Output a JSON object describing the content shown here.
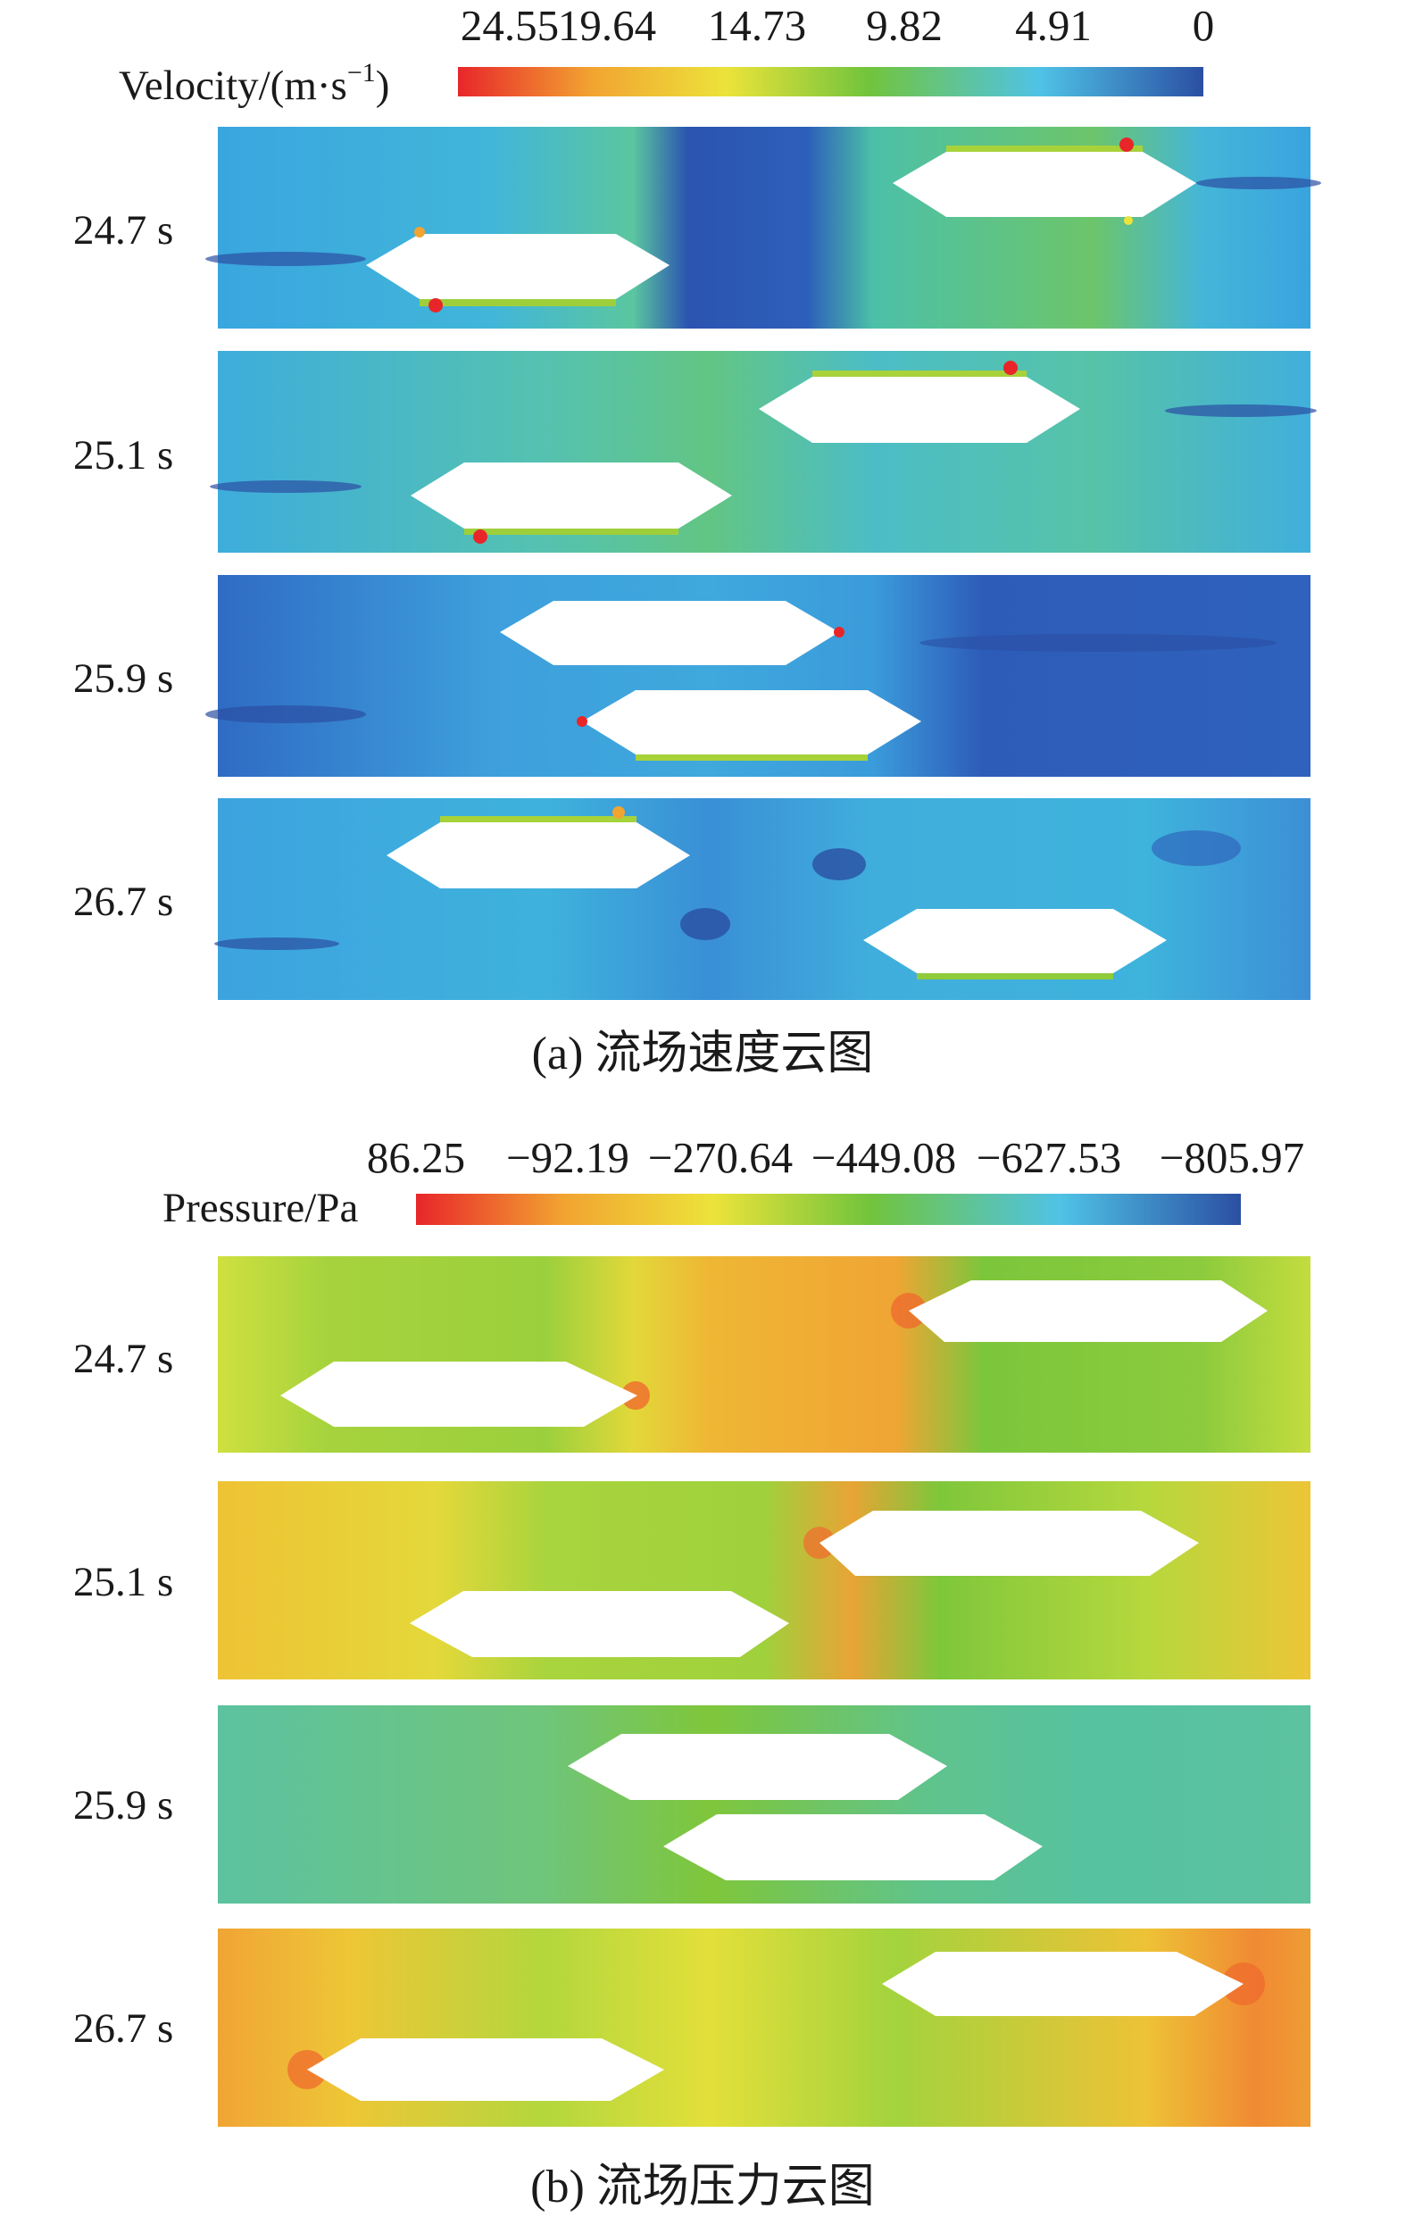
{
  "velocity": {
    "colorbar_label": "Velocity/(m·s",
    "colorbar_label_exp": "−1",
    "colorbar_label_close": ")",
    "ticks": [
      "24.55",
      "19.64",
      "14.73",
      "9.82",
      "4.91",
      "0"
    ],
    "panels": [
      {
        "time": "24.7 s"
      },
      {
        "time": "25.1 s"
      },
      {
        "time": "25.9 s"
      },
      {
        "time": "26.7 s"
      }
    ],
    "caption": "(a) 流场速度云图"
  },
  "pressure": {
    "colorbar_label": "Pressure/Pa",
    "ticks": [
      "86.25",
      "−92.19",
      "−270.64",
      "−449.08",
      "−627.53",
      "−805.97"
    ],
    "panels": [
      {
        "time": "24.7 s"
      },
      {
        "time": "25.1 s"
      },
      {
        "time": "25.9 s"
      },
      {
        "time": "26.7 s"
      }
    ],
    "caption": "(b) 流场压力云图"
  },
  "colors": {
    "red": "#e8262a",
    "orange": "#f2a431",
    "yellow": "#ece33a",
    "green": "#72c43c",
    "cyan": "#4fc3e6",
    "blue": "#2b4fa3"
  }
}
